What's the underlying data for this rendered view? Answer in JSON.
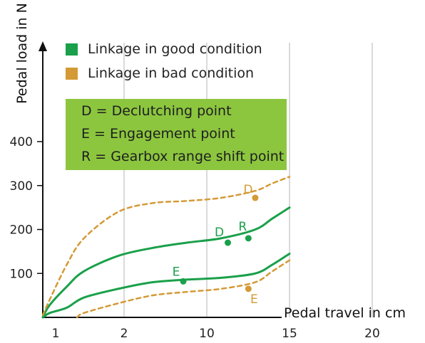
{
  "chart_data": {
    "type": "line",
    "ylabel": "Pedal load in N",
    "xlabel": "Pedal travel in cm",
    "x_tick_labels": [
      "1",
      "2",
      "10",
      "15",
      "20"
    ],
    "y_ticks": [
      100,
      200,
      300,
      400
    ],
    "ylim": [
      0,
      440
    ],
    "grid": "vertical lines at x ticks",
    "legend": {
      "placement": "top-left",
      "entries": [
        {
          "label": "Linkage in good condition",
          "color": "#1aa04a"
        },
        {
          "label": "Linkage in bad condition",
          "color": "#d49a36"
        }
      ]
    },
    "definitions": [
      "D = Declutching point",
      "E = Engagement point",
      "R = Gearbox range shift point"
    ],
    "definitions_box_color": "#8cc63f",
    "series": [
      {
        "condition": "good",
        "style": "solid",
        "color": "#1aa04a",
        "points": [
          [
            0.8,
            0
          ],
          [
            1,
            10
          ],
          [
            1.5,
            22
          ],
          [
            2,
            45
          ],
          [
            3,
            65
          ],
          [
            4,
            80
          ],
          [
            5,
            86
          ],
          [
            6,
            90
          ],
          [
            7,
            100
          ],
          [
            7.5,
            120
          ],
          [
            8,
            145
          ]
        ]
      },
      {
        "condition": "good",
        "style": "solid",
        "color": "#1aa04a",
        "points": [
          [
            0.8,
            0
          ],
          [
            1,
            28
          ],
          [
            1.5,
            70
          ],
          [
            2,
            105
          ],
          [
            3,
            140
          ],
          [
            4,
            158
          ],
          [
            5,
            170
          ],
          [
            6,
            180
          ],
          [
            7,
            200
          ],
          [
            7.5,
            225
          ],
          [
            8,
            250
          ]
        ]
      },
      {
        "condition": "bad",
        "style": "dashed",
        "color": "#d49a36",
        "points": [
          [
            0.8,
            5
          ],
          [
            1,
            40
          ],
          [
            1.5,
            120
          ],
          [
            2,
            180
          ],
          [
            3,
            240
          ],
          [
            4,
            260
          ],
          [
            5,
            265
          ],
          [
            6,
            272
          ],
          [
            7,
            288
          ],
          [
            7.5,
            305
          ],
          [
            8,
            320
          ]
        ]
      },
      {
        "condition": "bad",
        "style": "dashed",
        "color": "#d49a36",
        "points": [
          [
            1.8,
            0
          ],
          [
            2,
            10
          ],
          [
            3,
            32
          ],
          [
            4,
            50
          ],
          [
            5,
            58
          ],
          [
            6,
            65
          ],
          [
            7,
            80
          ],
          [
            7.5,
            105
          ],
          [
            8,
            130
          ]
        ]
      }
    ],
    "markers": [
      {
        "label": "E",
        "x": 4.9,
        "y": 82,
        "color": "#1aa04a"
      },
      {
        "label": "D",
        "x": 6.2,
        "y": 170,
        "color": "#1aa04a"
      },
      {
        "label": "R",
        "x": 6.8,
        "y": 180,
        "color": "#1aa04a"
      },
      {
        "label": "D",
        "x": 7.0,
        "y": 272,
        "color": "#d49a36"
      },
      {
        "label": "E",
        "x": 6.8,
        "y": 65,
        "color": "#d49a36"
      }
    ]
  }
}
